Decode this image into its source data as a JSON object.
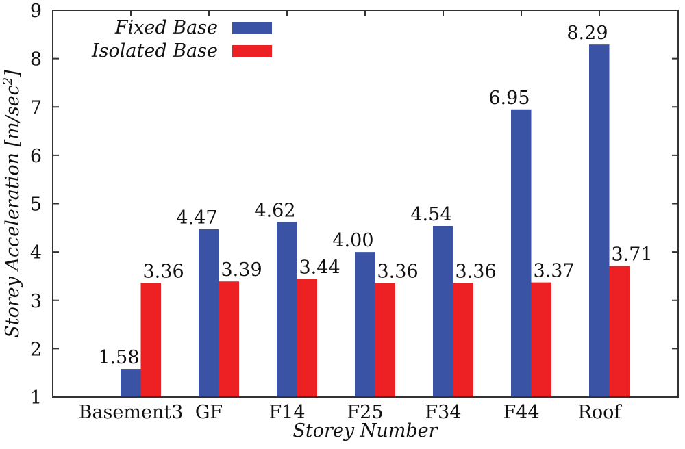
{
  "chart_data": {
    "type": "bar",
    "title": "",
    "xlabel": "Storey Number",
    "ylabel": "Storey Acceleration [m/sec²]",
    "ylabel_main": "Storey Acceleration [m/sec",
    "ylabel_sup": "2",
    "ylabel_end": "]",
    "ylim": [
      1,
      9
    ],
    "yticks": [
      "1",
      "2",
      "3",
      "4",
      "5",
      "6",
      "7",
      "8",
      "9"
    ],
    "categories": [
      "Basement3",
      "GF",
      "F14",
      "F25",
      "F34",
      "F44",
      "Roof"
    ],
    "series": [
      {
        "name": "Fixed Base",
        "color": "#3a53a4",
        "values": [
          1.58,
          4.47,
          4.62,
          4.0,
          4.54,
          6.95,
          8.29
        ],
        "labels": [
          "1.58",
          "4.47",
          "4.62",
          "4.00",
          "4.54",
          "6.95",
          "8.29"
        ]
      },
      {
        "name": "Isolated Base",
        "color": "#ed2024",
        "values": [
          3.36,
          3.39,
          3.44,
          3.36,
          3.36,
          3.37,
          3.71
        ],
        "labels": [
          "3.36",
          "3.39",
          "3.44",
          "3.36",
          "3.36",
          "3.37",
          "3.71"
        ]
      }
    ],
    "grid": false,
    "legend_position": "top-left"
  }
}
